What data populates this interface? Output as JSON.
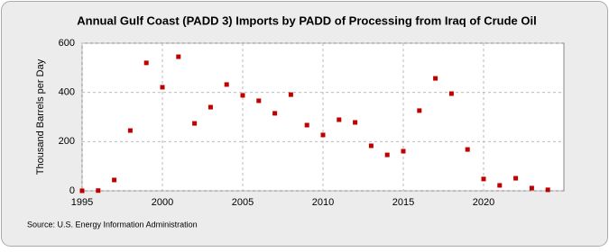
{
  "chart_data": {
    "type": "scatter",
    "title": "Annual Gulf Coast (PADD 3) Imports by PADD of Processing from Iraq of Crude Oil",
    "y_label": "Thousand Barrels per Day",
    "source": "Source: U.S. Energy Information Administration",
    "x": [
      1995,
      1996,
      1997,
      1998,
      1999,
      2000,
      2001,
      2002,
      2003,
      2004,
      2005,
      2006,
      2007,
      2008,
      2009,
      2010,
      2011,
      2012,
      2013,
      2014,
      2015,
      2016,
      2017,
      2018,
      2019,
      2020,
      2021,
      2022,
      2023,
      2024
    ],
    "values": [
      0,
      1,
      44,
      245,
      520,
      421,
      545,
      274,
      340,
      432,
      388,
      366,
      315,
      391,
      267,
      227,
      289,
      278,
      183,
      146,
      161,
      326,
      457,
      395,
      168,
      48,
      22,
      51,
      11,
      4
    ],
    "color": "#c00000",
    "xlim": [
      1995,
      2025
    ],
    "xticks": [
      1995,
      2000,
      2005,
      2010,
      2015,
      2020
    ],
    "ylim": [
      0,
      600
    ],
    "yticks": [
      0,
      200,
      400,
      600
    ],
    "grid": true
  }
}
